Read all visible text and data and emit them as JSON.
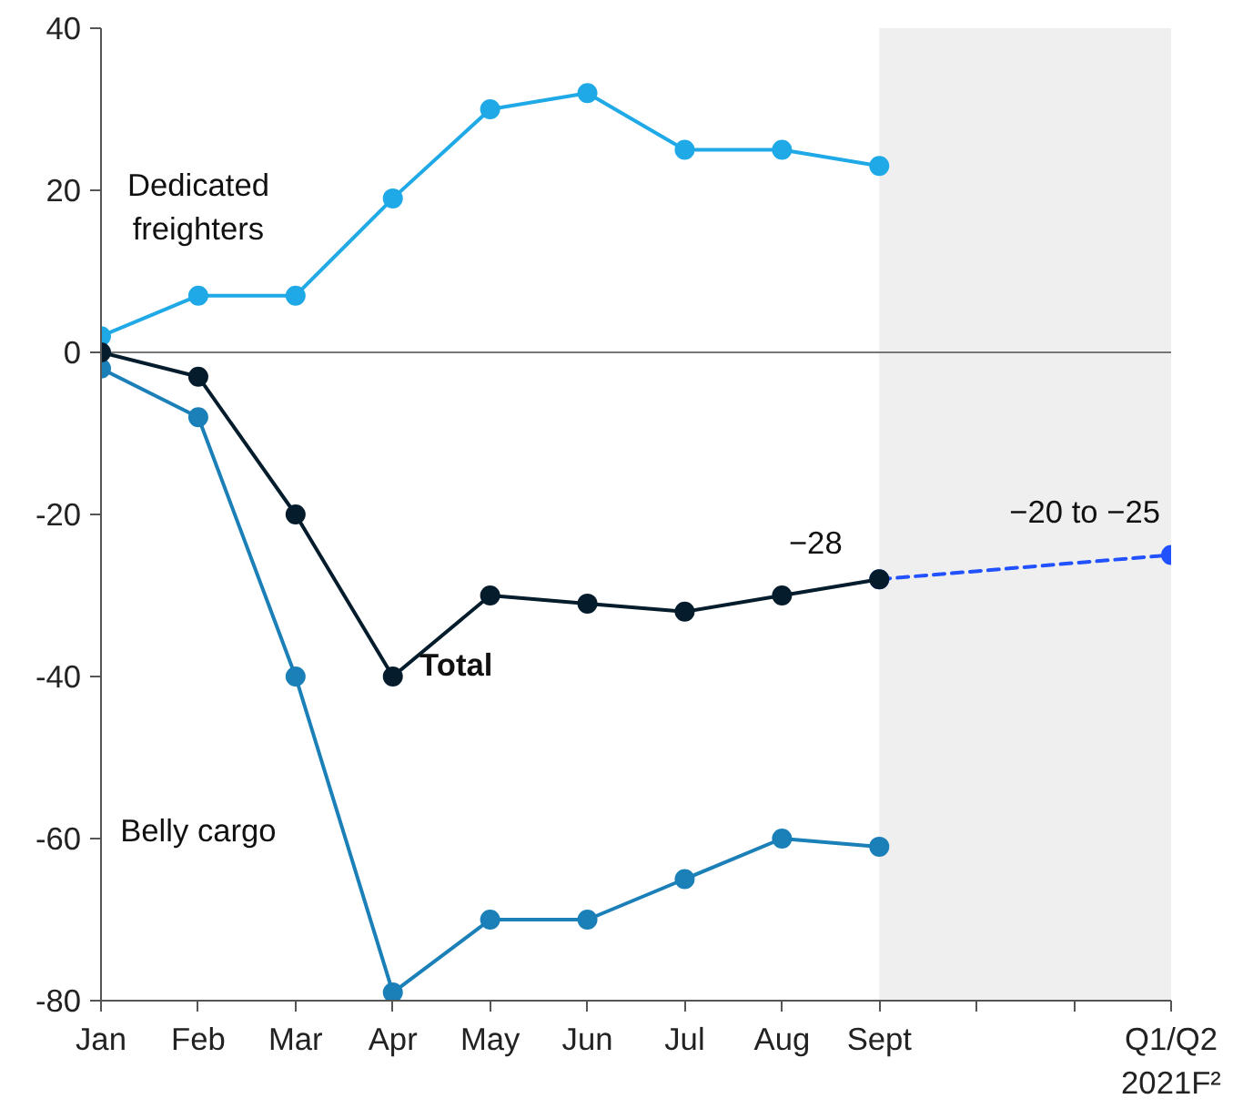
{
  "chart_data": {
    "type": "line",
    "marker": "circle",
    "grid": false,
    "categories": [
      "Jan",
      "Feb",
      "Mar",
      "Apr",
      "May",
      "Jun",
      "Jul",
      "Aug",
      "Sept",
      null,
      null,
      "Q1/Q2\n2021F²"
    ],
    "ylim": [
      -80,
      40
    ],
    "yticks": [
      -80,
      -60,
      -40,
      -20,
      0,
      20,
      40
    ],
    "series": [
      {
        "color": "#2251ff",
        "values": [
          null,
          null,
          null,
          null,
          null,
          null,
          null,
          null,
          -28,
          null,
          null,
          -25
        ],
        "line_style": "dashed"
      },
      {
        "name": "Dedicated freighters",
        "color": "#1fa9e6",
        "values": [
          2,
          7,
          7,
          19,
          30,
          32,
          25,
          25,
          23,
          null,
          null,
          null
        ]
      },
      {
        "name": "Belly cargo",
        "color": "#1b7fb8",
        "values": [
          -2,
          -8,
          -40,
          -79,
          -70,
          -70,
          -65,
          -60,
          -61,
          null,
          null,
          null
        ]
      },
      {
        "name": "Total",
        "color": "#051c2c",
        "values": [
          0,
          -3,
          -20,
          -40,
          -30,
          -31,
          -32,
          -30,
          -28,
          null,
          null,
          null
        ]
      }
    ],
    "ref_lines": [
      {
        "axis": "y",
        "value": 0,
        "color": "#777777"
      }
    ],
    "bands": [
      {
        "axis": "x",
        "from": "Sept",
        "to": "Q1/Q2\n2021F²",
        "color": "#efefef"
      }
    ],
    "annotations": [
      {
        "text": "−28",
        "x": "Sept",
        "y": -28
      },
      {
        "text": "−20 to −25",
        "x": "Q1/Q2\n2021F²",
        "y": -25
      }
    ]
  }
}
